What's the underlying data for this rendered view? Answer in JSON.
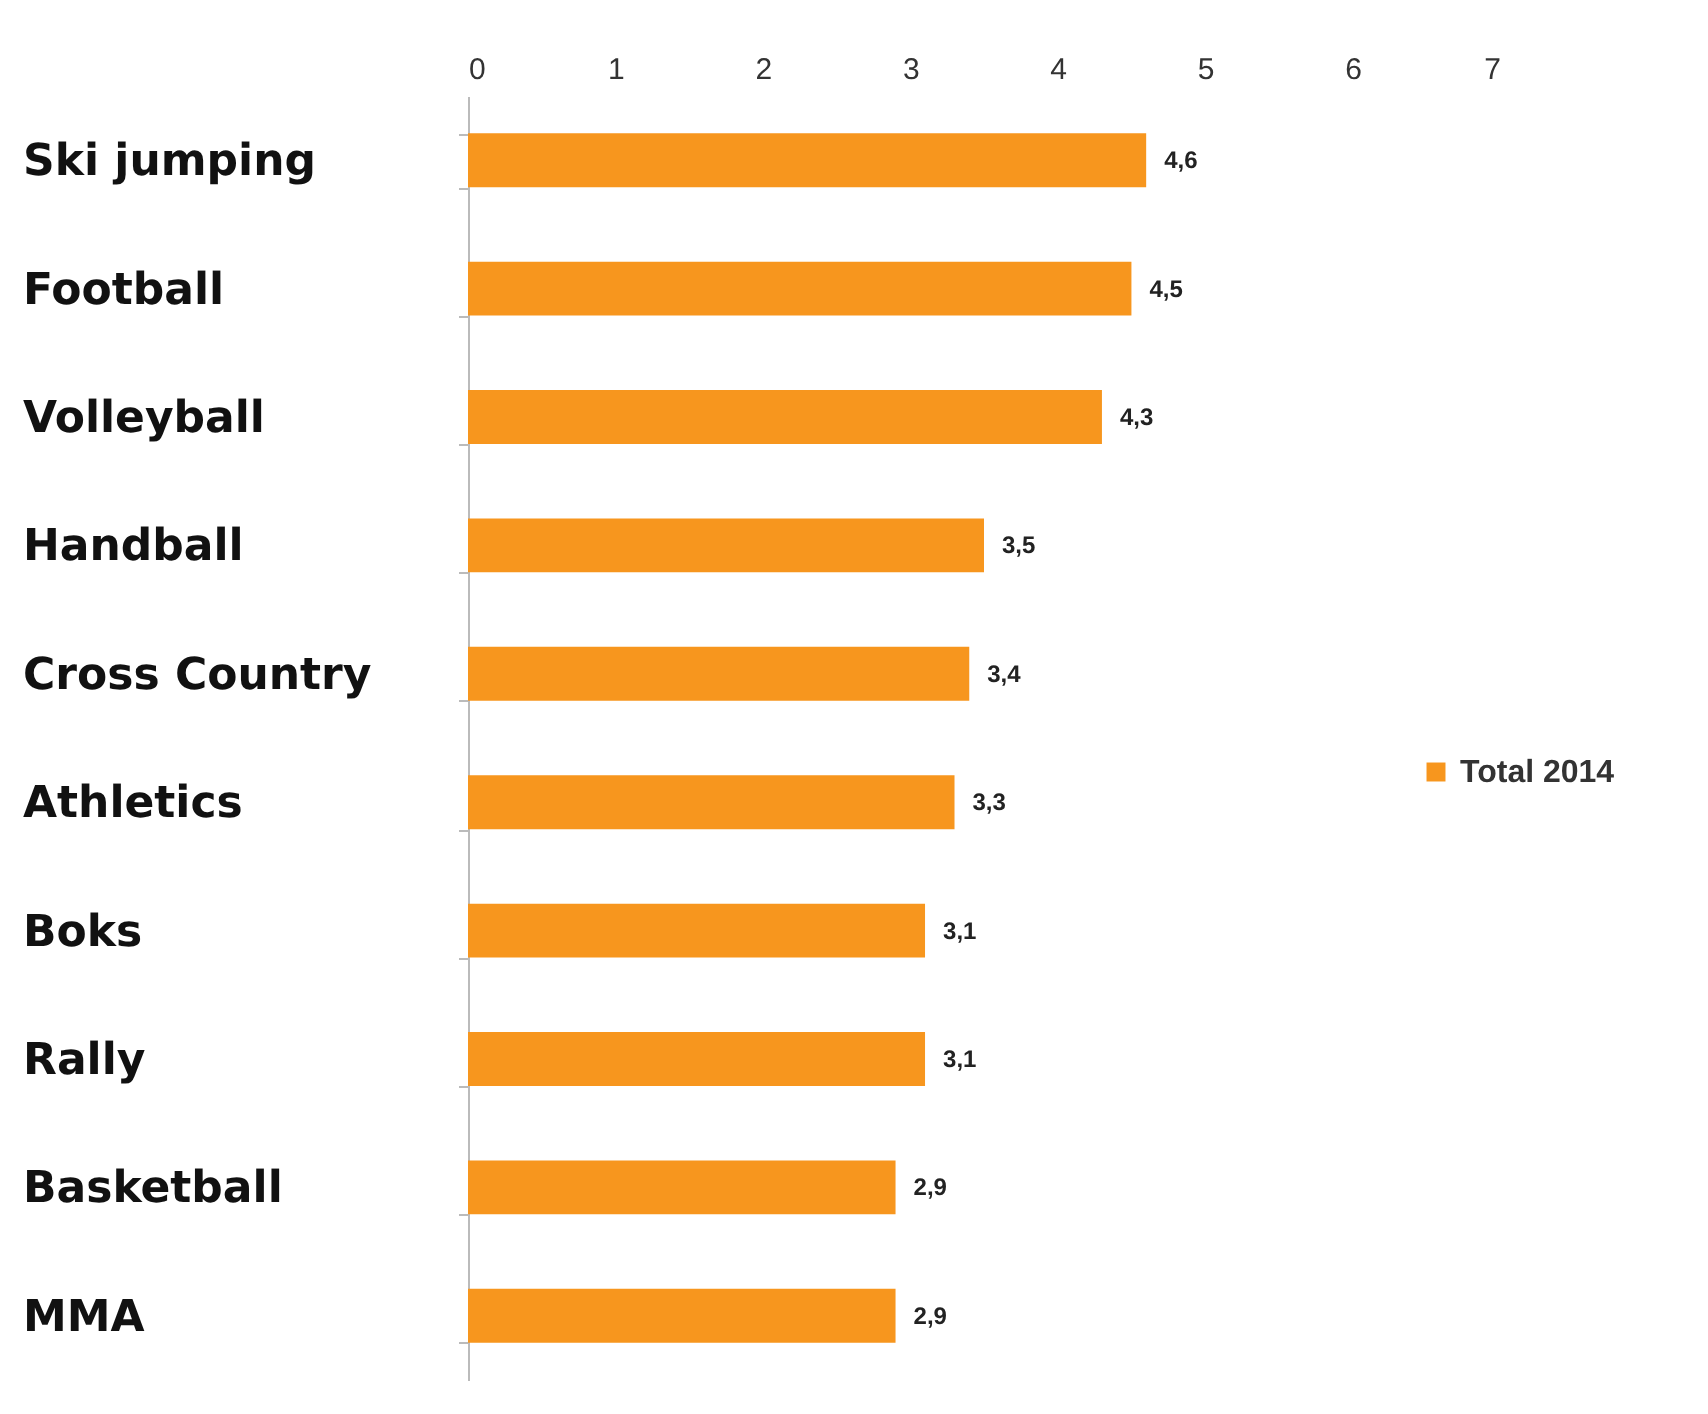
{
  "chart_data": {
    "type": "bar",
    "orientation": "horizontal",
    "categories": [
      "Ski jumping",
      "Football",
      "Volleyball",
      "Handball",
      "Cross Country",
      "Athletics",
      "Boks",
      "Rally",
      "Basketball",
      "MMA"
    ],
    "series": [
      {
        "name": "Total 2014",
        "color": "#f7961e",
        "values": [
          4.6,
          4.5,
          4.3,
          3.5,
          3.4,
          3.3,
          3.1,
          3.1,
          2.9,
          2.9
        ],
        "value_labels": [
          "4,6",
          "4,5",
          "4,3",
          "3,5",
          "3,4",
          "3,3",
          "3,1",
          "3,1",
          "2,9",
          "2,9"
        ]
      }
    ],
    "xlim": [
      0,
      7
    ],
    "xticks": [
      0,
      1,
      2,
      3,
      4,
      5,
      6,
      7
    ],
    "legend": "right"
  }
}
